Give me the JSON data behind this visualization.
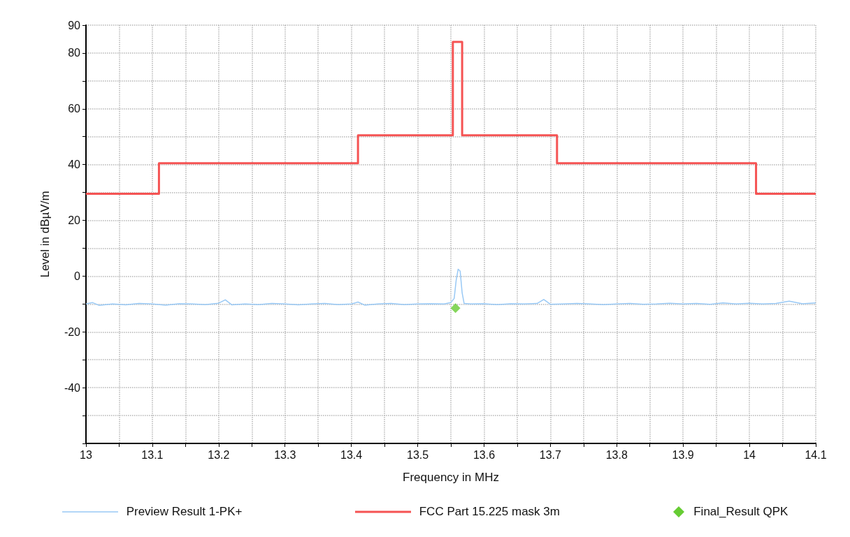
{
  "chart_data": {
    "type": "line",
    "xlabel": "Frequency in MHz",
    "ylabel": "Level in dBµV/m",
    "xlim": [
      13,
      14.1
    ],
    "ylim": [
      -60,
      90
    ],
    "xticks": [
      13,
      {
        "value": 13.05,
        "label": null
      },
      13.1,
      {
        "value": 13.15,
        "label": null
      },
      13.2,
      {
        "value": 13.25,
        "label": null
      },
      13.3,
      {
        "value": 13.35,
        "label": null
      },
      13.4,
      {
        "value": 13.45,
        "label": null
      },
      13.5,
      {
        "value": 13.55,
        "label": null
      },
      13.6,
      {
        "value": 13.65,
        "label": null
      },
      13.7,
      {
        "value": 13.75,
        "label": null
      },
      13.8,
      {
        "value": 13.85,
        "label": null
      },
      13.9,
      {
        "value": 13.95,
        "label": null
      },
      14,
      {
        "value": 14.05,
        "label": null
      },
      14.1
    ],
    "yticks": [
      {
        "value": -60,
        "label": null
      },
      {
        "value": -50,
        "label": null
      },
      -40,
      {
        "value": -30,
        "label": null
      },
      -20,
      {
        "value": -10,
        "label": null
      },
      0,
      {
        "value": 10,
        "label": null
      },
      20,
      {
        "value": 30,
        "label": null
      },
      40,
      {
        "value": 50,
        "label": null
      },
      60,
      {
        "value": 70,
        "label": null
      },
      80,
      90
    ],
    "grid": true,
    "legend": "bottom",
    "series": [
      {
        "name": "Preview Result 1-PK+",
        "color": "#99c9f5",
        "x": [
          13,
          13.01,
          13.02,
          13.04,
          13.06,
          13.08,
          13.1,
          13.12,
          13.14,
          13.16,
          13.18,
          13.2,
          13.21,
          13.22,
          13.24,
          13.26,
          13.28,
          13.3,
          13.32,
          13.34,
          13.36,
          13.38,
          13.4,
          13.41,
          13.42,
          13.44,
          13.46,
          13.48,
          13.5,
          13.52,
          13.54,
          13.55,
          13.555,
          13.558,
          13.561,
          13.564,
          13.567,
          13.57,
          13.58,
          13.6,
          13.62,
          13.64,
          13.66,
          13.68,
          13.69,
          13.7,
          13.72,
          13.74,
          13.76,
          13.78,
          13.8,
          13.82,
          13.84,
          13.86,
          13.88,
          13.9,
          13.92,
          13.94,
          13.96,
          13.98,
          14,
          14.02,
          14.04,
          14.06,
          14.08,
          14.1
        ],
        "values": [
          -10,
          -9.5,
          -10.5,
          -10,
          -10.3,
          -9.8,
          -10,
          -10.4,
          -9.9,
          -10,
          -10.2,
          -9.7,
          -8.5,
          -10.3,
          -10,
          -10.2,
          -9.8,
          -10,
          -10.3,
          -10,
          -9.8,
          -10.2,
          -10,
          -9.3,
          -10.4,
          -10,
          -9.8,
          -10.2,
          -10,
          -9.9,
          -10,
          -9.5,
          -8,
          -1.5,
          2.5,
          1.8,
          -6,
          -9.8,
          -10,
          -9.9,
          -10.2,
          -9.9,
          -10,
          -9.8,
          -8.4,
          -10.1,
          -10,
          -9.8,
          -10,
          -10.2,
          -10,
          -9.8,
          -10.1,
          -10,
          -9.7,
          -10,
          -9.8,
          -10.1,
          -9.6,
          -10,
          -9.7,
          -10,
          -9.8,
          -9,
          -9.9,
          -9.6
        ]
      },
      {
        "name": "FCC Part 15.225 mask 3m",
        "type": "step",
        "color": "#f55353",
        "x": [
          13,
          13.11,
          13.41,
          13.553,
          13.567,
          13.71,
          14.01,
          14.1
        ],
        "values": [
          29.5,
          40.5,
          50.5,
          84,
          50.5,
          40.5,
          29.5,
          29.5
        ]
      },
      {
        "name": "Final_Result QPK",
        "type": "scatter",
        "marker": "diamond",
        "color": "#66cc33",
        "x": [
          13.557
        ],
        "values": [
          -11.5
        ]
      }
    ]
  }
}
